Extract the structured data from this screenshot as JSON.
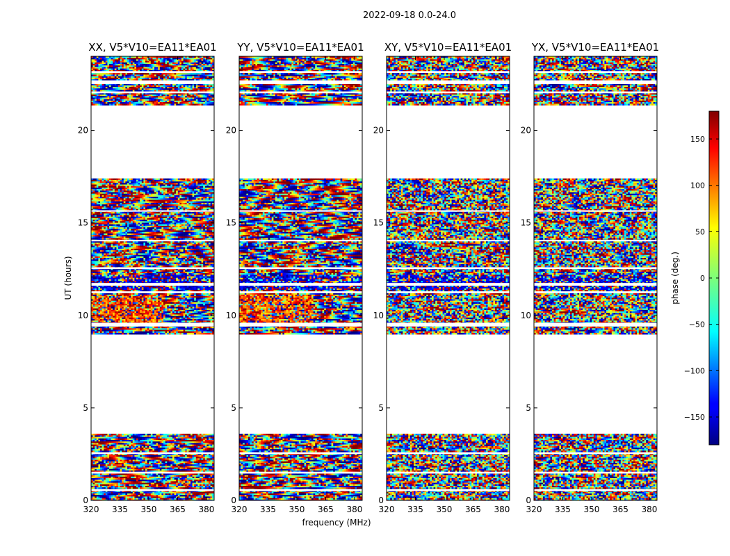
{
  "figure": {
    "suptitle": "2022-09-18 0.0-24.0",
    "ylabel": "UT (hours)",
    "xlabel": "frequency (MHz)"
  },
  "colorbar": {
    "label": "phase (deg.)",
    "range": [
      -180,
      180
    ],
    "ticks": [
      150,
      100,
      50,
      0,
      -50,
      -100,
      -150
    ],
    "tick_labels": [
      "150",
      "100",
      "50",
      "0",
      "−50",
      "−100",
      "−150"
    ],
    "colormap": "jet",
    "colors": [
      "#000080",
      "#0000ff",
      "#00ffff",
      "#ffff00",
      "#ff0000",
      "#800000"
    ]
  },
  "chart_data": {
    "type": "heatmap",
    "description_of_values": "phase in degrees vs frequency (MHz) and UT (hours)",
    "x_ticks": [
      320,
      335,
      350,
      365,
      380
    ],
    "x_tick_labels": [
      "320",
      "335",
      "350",
      "365",
      "380"
    ],
    "xlim": [
      320,
      384
    ],
    "y_ticks": [
      0,
      5,
      10,
      15,
      20
    ],
    "y_tick_labels": [
      "0",
      "5",
      "10",
      "15",
      "20"
    ],
    "ylim": [
      0,
      24
    ],
    "data_time_ranges_hours": [
      [
        0.0,
        3.6
      ],
      [
        9.0,
        17.4
      ],
      [
        21.4,
        24.0
      ]
    ],
    "blank_rows_hours": [
      [
        0.5,
        0.6
      ],
      [
        1.45,
        1.55
      ],
      [
        2.5,
        2.6
      ],
      [
        9.4,
        9.6
      ],
      [
        11.2,
        11.3
      ],
      [
        11.6,
        11.75
      ],
      [
        12.5,
        12.6
      ],
      [
        14.0,
        14.08
      ],
      [
        15.6,
        15.68
      ],
      [
        22.0,
        22.1
      ],
      [
        22.5,
        22.7
      ],
      [
        23.1,
        23.2
      ]
    ],
    "panels": [
      {
        "title": "XX, V5*V10=EA11*EA01",
        "style": "parallel",
        "noise": 0.35
      },
      {
        "title": "YY, V5*V10=EA11*EA01",
        "style": "parallel",
        "noise": 0.3
      },
      {
        "title": "XY, V5*V10=EA11*EA01",
        "style": "cross",
        "noise": 0.75
      },
      {
        "title": "YX, V5*V10=EA11*EA01",
        "style": "cross",
        "noise": 0.75
      }
    ]
  }
}
